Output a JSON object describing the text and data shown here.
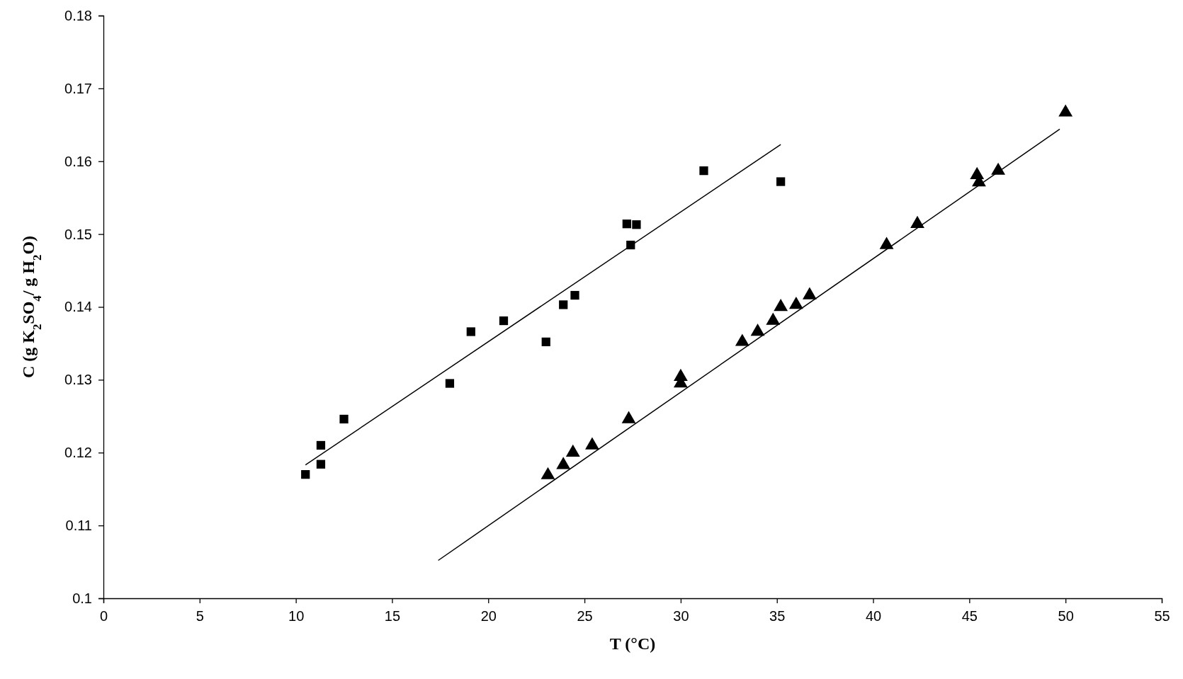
{
  "chart_data": {
    "type": "scatter",
    "xlabel": "T (°C)",
    "ylabel": "C (g K$_{2}$SO$_{4}$/ g H$_{2}$O)",
    "xlim": [
      0,
      55
    ],
    "xticks": [
      0,
      5,
      10,
      15,
      20,
      25,
      30,
      35,
      40,
      45,
      50,
      55
    ],
    "ylim": [
      0.1,
      0.18
    ],
    "yticks": [
      0.1,
      0.11,
      0.12,
      0.13,
      0.14,
      0.15,
      0.16,
      0.17,
      0.18
    ],
    "grid": false,
    "series": [
      {
        "marker": "square",
        "color": "#000000",
        "x": [
          10.5,
          11.3,
          11.3,
          12.5,
          18.0,
          19.1,
          20.8,
          23.0,
          23.9,
          24.5,
          27.2,
          27.7,
          27.4,
          31.2,
          35.2
        ],
        "values": [
          0.117,
          0.121,
          0.1184,
          0.1246,
          0.1295,
          0.1366,
          0.1381,
          0.1352,
          0.1403,
          0.1416,
          0.1514,
          0.1513,
          0.1485,
          0.1587,
          0.1572
        ]
      },
      {
        "marker": "triangle",
        "color": "#000000",
        "x": [
          23.1,
          23.9,
          24.4,
          25.4,
          27.3,
          30.0,
          30.0,
          33.2,
          34.0,
          34.8,
          35.2,
          36.0,
          36.7,
          40.7,
          42.3,
          45.4,
          45.5,
          46.5,
          50.0
        ],
        "values": [
          0.1169,
          0.1183,
          0.12,
          0.121,
          0.1246,
          0.1304,
          0.1295,
          0.1352,
          0.1366,
          0.1381,
          0.14,
          0.1403,
          0.1416,
          0.1485,
          0.1514,
          0.1581,
          0.1571,
          0.1587,
          0.1667
        ]
      },
      {
        "type": "line",
        "marker": "none",
        "line_style": "solid",
        "color": "#000000",
        "x": [
          10.5,
          35.2
        ],
        "values": [
          0.1183,
          0.1623
        ]
      },
      {
        "type": "line",
        "marker": "none",
        "line_style": "solid",
        "color": "#000000",
        "x": [
          17.4,
          49.7
        ],
        "values": [
          0.1052,
          0.1644
        ]
      }
    ]
  }
}
